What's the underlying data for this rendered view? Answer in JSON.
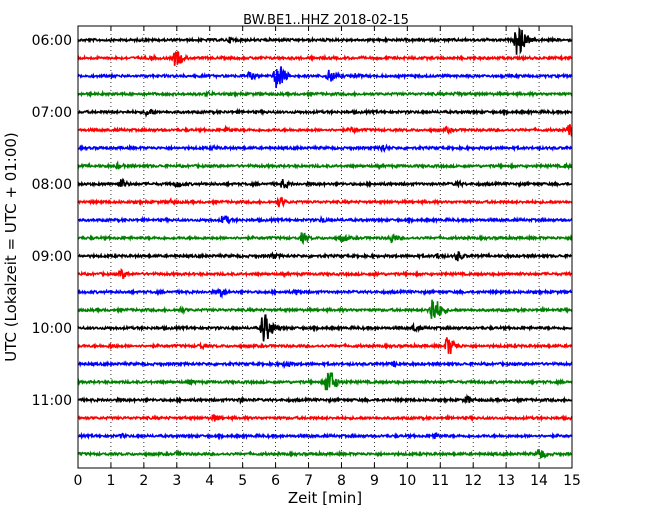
{
  "chart_data": {
    "type": "line",
    "title": "BW.BE1..HHZ 2018-02-15",
    "xlabel": "Zeit  [min]",
    "ylabel": "UTC (Lokalzeit = UTC + 01:00)",
    "xlim": [
      0,
      15
    ],
    "xticks": [
      "0",
      "1",
      "2",
      "3",
      "4",
      "5",
      "6",
      "7",
      "8",
      "9",
      "10",
      "11",
      "12",
      "13",
      "14",
      "15"
    ],
    "grid": "vertical dotted",
    "trace_colors": [
      "#000000",
      "#ff0000",
      "#0000ff",
      "#008000"
    ],
    "hour_labels": [
      "06:00",
      "07:00",
      "08:00",
      "09:00",
      "10:00",
      "11:00"
    ],
    "traces": [
      {
        "start": "06:00",
        "events": [
          [
            4.6,
            0.15
          ],
          [
            13.3,
            1.0
          ]
        ]
      },
      {
        "start": "06:15",
        "events": [
          [
            2.95,
            0.55
          ],
          [
            2.2,
            0.1
          ]
        ]
      },
      {
        "start": "06:30",
        "events": [
          [
            5.2,
            0.25
          ],
          [
            6.0,
            0.9
          ],
          [
            7.6,
            0.45
          ],
          [
            8.4,
            0.15
          ]
        ]
      },
      {
        "start": "06:45",
        "events": [
          [
            3.9,
            0.1
          ],
          [
            11.5,
            0.1
          ]
        ]
      },
      {
        "start": "07:00",
        "events": [
          [
            2.1,
            0.3
          ]
        ]
      },
      {
        "start": "07:15",
        "events": [
          [
            4.5,
            0.15
          ],
          [
            8.3,
            0.15
          ],
          [
            11.2,
            0.15
          ],
          [
            14.9,
            0.5
          ]
        ]
      },
      {
        "start": "07:30",
        "events": [
          [
            9.2,
            0.25
          ],
          [
            4.1,
            0.1
          ]
        ]
      },
      {
        "start": "07:45",
        "events": [
          [
            1.2,
            0.15
          ],
          [
            14.8,
            0.1
          ]
        ]
      },
      {
        "start": "08:00",
        "events": [
          [
            1.3,
            0.3
          ],
          [
            3.0,
            0.2
          ],
          [
            6.2,
            0.3
          ],
          [
            11.5,
            0.15
          ]
        ]
      },
      {
        "start": "08:15",
        "events": [
          [
            6.1,
            0.3
          ],
          [
            2.8,
            0.1
          ]
        ]
      },
      {
        "start": "08:30",
        "events": [
          [
            4.4,
            0.35
          ],
          [
            7.4,
            0.15
          ]
        ]
      },
      {
        "start": "08:45",
        "events": [
          [
            6.8,
            0.3
          ],
          [
            8.0,
            0.25
          ],
          [
            9.5,
            0.3
          ]
        ]
      },
      {
        "start": "09:00",
        "events": [
          [
            11.5,
            0.3
          ],
          [
            5.9,
            0.15
          ],
          [
            10.9,
            0.15
          ]
        ]
      },
      {
        "start": "09:15",
        "events": [
          [
            1.3,
            0.3
          ],
          [
            9.0,
            0.1
          ]
        ]
      },
      {
        "start": "09:30",
        "events": [
          [
            4.3,
            0.3
          ],
          [
            6.6,
            0.15
          ]
        ]
      },
      {
        "start": "09:45",
        "events": [
          [
            10.7,
            1.0
          ],
          [
            3.1,
            0.15
          ]
        ]
      },
      {
        "start": "10:00",
        "events": [
          [
            5.6,
            1.0
          ],
          [
            10.2,
            0.2
          ]
        ]
      },
      {
        "start": "10:15",
        "events": [
          [
            11.2,
            0.65
          ],
          [
            3.7,
            0.15
          ],
          [
            1.0,
            0.1
          ]
        ]
      },
      {
        "start": "10:30",
        "events": [
          [
            6.3,
            0.2
          ],
          [
            9.6,
            0.15
          ]
        ]
      },
      {
        "start": "10:45",
        "events": [
          [
            7.55,
            0.9
          ],
          [
            3.4,
            0.1
          ]
        ]
      },
      {
        "start": "11:00",
        "events": [
          [
            11.8,
            0.25
          ],
          [
            4.9,
            0.1
          ]
        ]
      },
      {
        "start": "11:15",
        "events": [
          [
            4.1,
            0.2
          ]
        ]
      },
      {
        "start": "11:30",
        "events": [
          [
            10.8,
            0.2
          ],
          [
            1.3,
            0.1
          ]
        ]
      },
      {
        "start": "11:45",
        "events": [
          [
            14.0,
            0.35
          ],
          [
            3.0,
            0.1
          ]
        ]
      }
    ]
  }
}
